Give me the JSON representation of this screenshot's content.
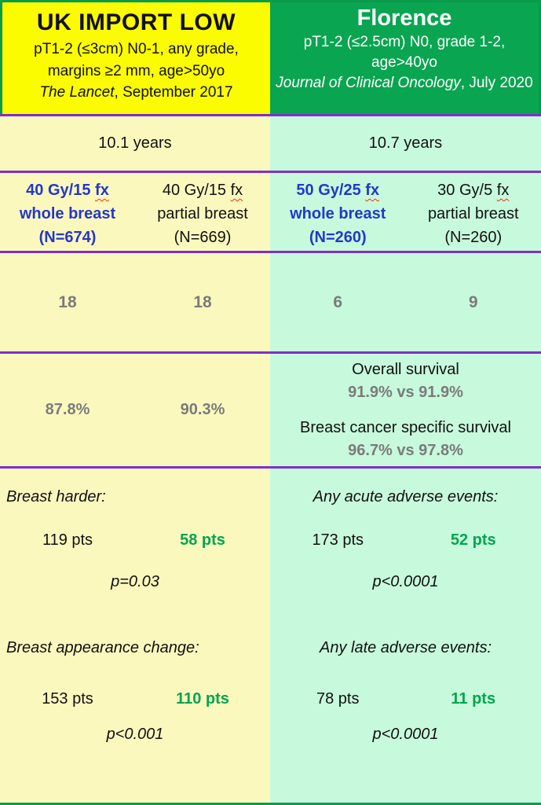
{
  "colors": {
    "header_yellow": "#fcfc00",
    "header_green": "#0aa551",
    "body_yellow": "#fbf8be",
    "body_mint": "#c7f9dc",
    "divider_purple": "#7f2fc9",
    "border_green": "#0a9b4c",
    "highlight_blue": "#2438c8",
    "result_green": "#00a550",
    "muted_gray": "#7b7b7b",
    "squiggle_red": "#ff2a00"
  },
  "labels": {
    "fx": "fx"
  },
  "trials": [
    {
      "name": "UK IMPORT LOW",
      "criteria": [
        "pT1-2 (≤3cm) N0-1, any grade,",
        "margins ≥2 mm, age>50yo"
      ],
      "journal_name": "The Lancet",
      "journal_suffix": ", September 2017",
      "followup": "10.1 years",
      "arms": [
        {
          "dose": "40 Gy/15",
          "target": "whole breast",
          "n": "(N=674)"
        },
        {
          "dose": "40 Gy/15",
          "target": "partial breast",
          "n": "(N=669)"
        }
      ],
      "counts": [
        "18",
        "18"
      ],
      "survival_values": [
        "87.8%",
        "90.3%"
      ],
      "adverse": [
        {
          "label": "Breast harder:",
          "arm1": "119 pts",
          "arm2": "58 pts",
          "p": "p=0.03"
        },
        {
          "label": "Breast appearance change:",
          "arm1": "153 pts",
          "arm2": "110 pts",
          "p": "p<0.001"
        }
      ]
    },
    {
      "name": "Florence",
      "criteria": [
        "pT1-2 (≤2.5cm) N0, grade 1-2,",
        "age>40yo"
      ],
      "journal_name": "Journal of Clinical Oncology",
      "journal_suffix": ", July 2020",
      "followup": "10.7 years",
      "arms": [
        {
          "dose": "50 Gy/25",
          "target": "whole breast",
          "n": "(N=260)"
        },
        {
          "dose": "30 Gy/5",
          "target": "partial breast",
          "n": "(N=260)"
        }
      ],
      "counts": [
        "6",
        "9"
      ],
      "survival_lines": [
        {
          "label": "Overall survival",
          "value": "91.9% vs 91.9%"
        },
        {
          "label": "Breast cancer specific survival",
          "value": "96.7% vs 97.8%"
        }
      ],
      "adverse": [
        {
          "label": "Any acute adverse events:",
          "arm1": "173 pts",
          "arm2": "52 pts",
          "p": "p<0.0001"
        },
        {
          "label": "Any late adverse events:",
          "arm1": "78 pts",
          "arm2": "11 pts",
          "p": "p<0.0001"
        }
      ]
    }
  ]
}
